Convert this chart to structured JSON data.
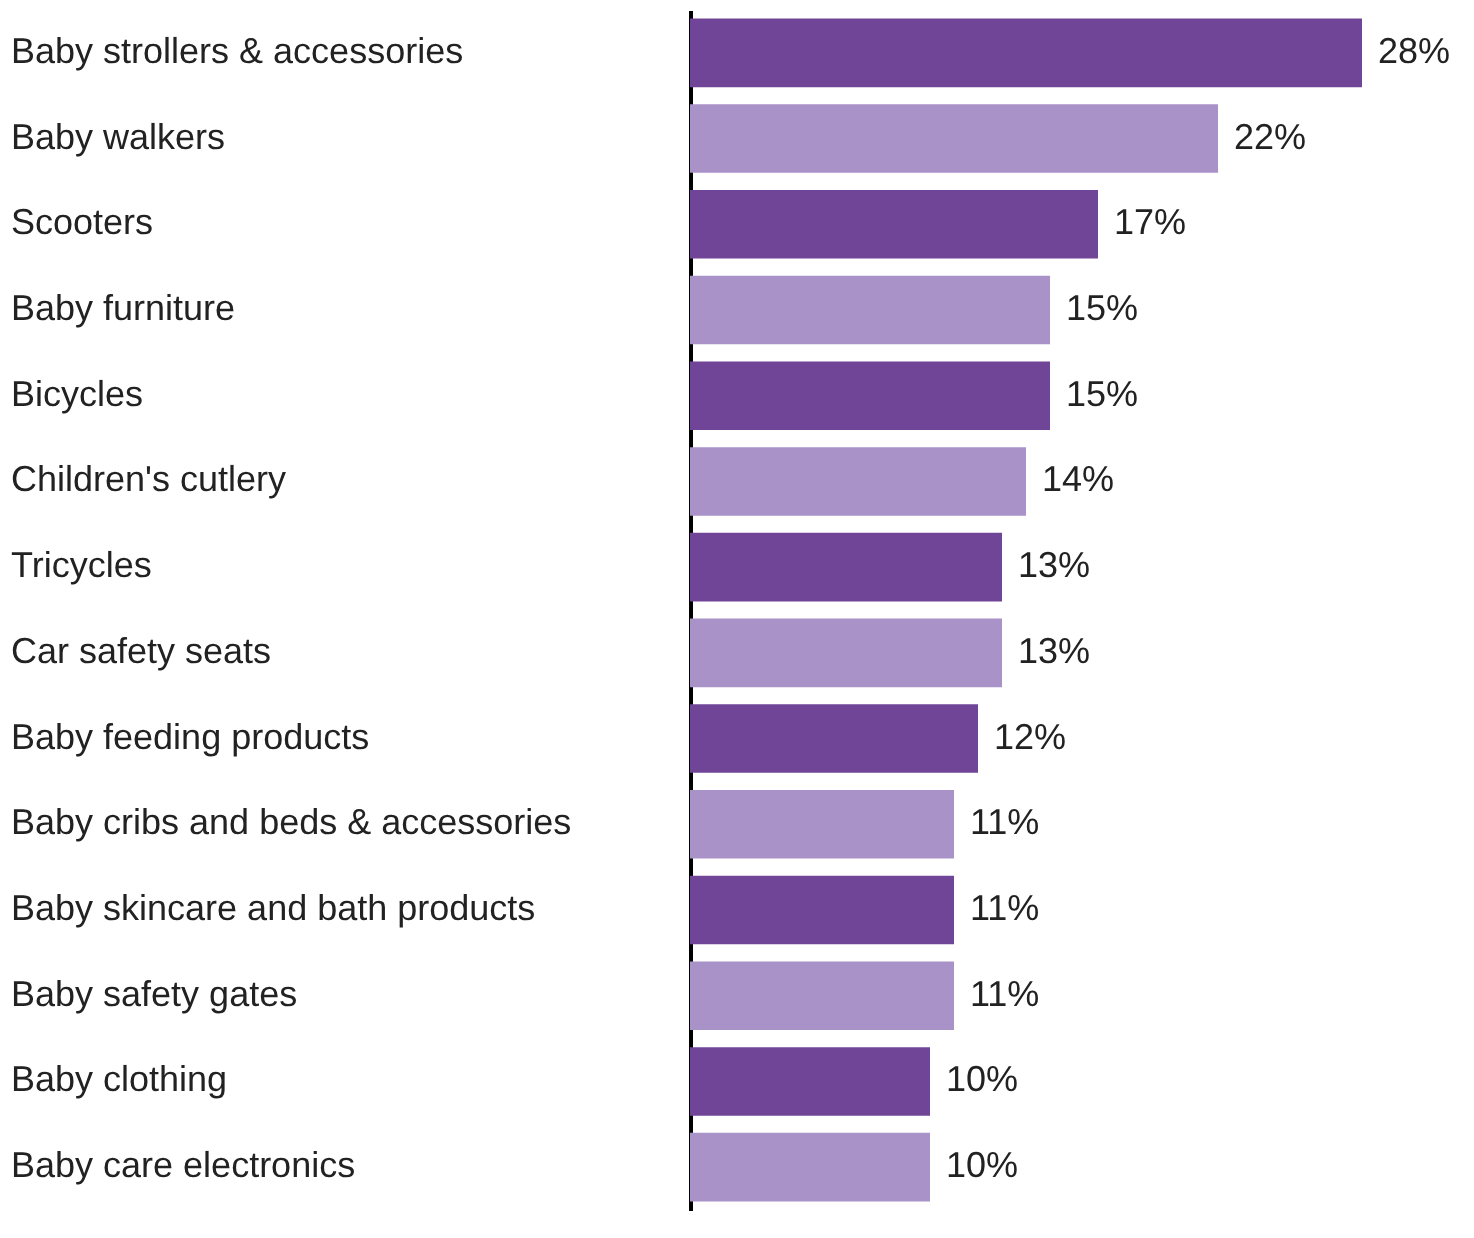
{
  "chart_data": {
    "type": "bar",
    "orientation": "horizontal",
    "categories": [
      "Baby strollers & accessories",
      "Baby walkers",
      "Scooters",
      "Baby furniture",
      "Bicycles",
      "Children's cutlery",
      "Tricycles",
      "Car safety seats",
      "Baby feeding products",
      "Baby cribs and beds & accessories",
      "Baby skincare and bath products",
      "Baby safety gates",
      "Baby clothing",
      "Baby care electronics"
    ],
    "values": [
      28,
      22,
      17,
      15,
      15,
      14,
      13,
      13,
      12,
      11,
      11,
      11,
      10,
      10
    ],
    "value_labels": [
      "28%",
      "22%",
      "17%",
      "15%",
      "15%",
      "14%",
      "13%",
      "13%",
      "12%",
      "11%",
      "11%",
      "11%",
      "10%",
      "10%"
    ],
    "colors": [
      "#704497",
      "#a992c8",
      "#704497",
      "#a992c8",
      "#704497",
      "#a992c8",
      "#704497",
      "#a992c8",
      "#704497",
      "#a992c8",
      "#704497",
      "#a992c8",
      "#704497",
      "#a992c8"
    ],
    "xlim": [
      0,
      32
    ],
    "tick_labels": "y"
  }
}
